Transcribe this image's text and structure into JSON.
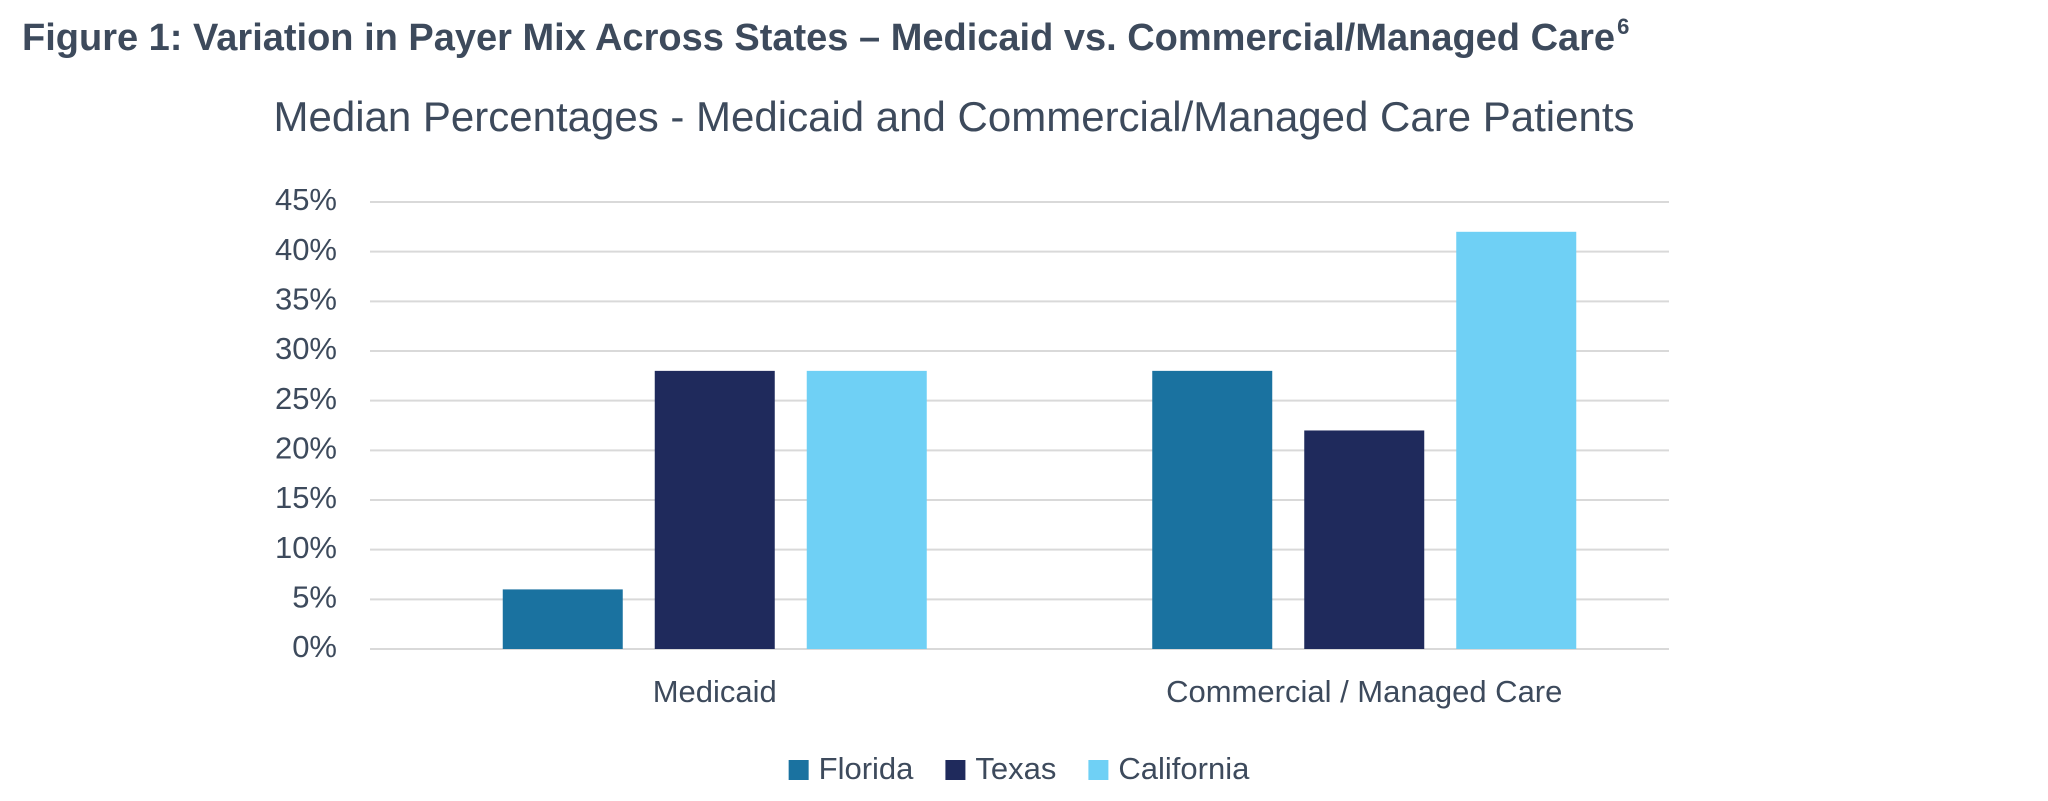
{
  "figure": {
    "title": "Figure 1: Variation in Payer Mix Across States – Medicaid vs. Commercial/Managed Care",
    "footnote_ref": "6"
  },
  "chart_data": {
    "type": "bar",
    "title": "Median Percentages - Medicaid and Commercial/Managed Care Patients",
    "categories": [
      "Medicaid",
      "Commercial / Managed Care"
    ],
    "series": [
      {
        "name": "Florida",
        "color": "#1a72a0",
        "values": [
          6,
          28
        ]
      },
      {
        "name": "Texas",
        "color": "#1f2a5c",
        "values": [
          28,
          22
        ]
      },
      {
        "name": "California",
        "color": "#6fd0f5",
        "values": [
          28,
          42
        ]
      }
    ],
    "ylim": [
      0,
      45
    ],
    "yticks": [
      {
        "value": 0,
        "label": "0%"
      },
      {
        "value": 5,
        "label": "5%"
      },
      {
        "value": 10,
        "label": "10%"
      },
      {
        "value": 15,
        "label": "15%"
      },
      {
        "value": 20,
        "label": "20%"
      },
      {
        "value": 25,
        "label": "25%"
      },
      {
        "value": 30,
        "label": "30%"
      },
      {
        "value": 35,
        "label": "35%"
      },
      {
        "value": 40,
        "label": "40%"
      },
      {
        "value": 45,
        "label": "45%"
      }
    ],
    "grid": true,
    "legend": "bottom"
  }
}
